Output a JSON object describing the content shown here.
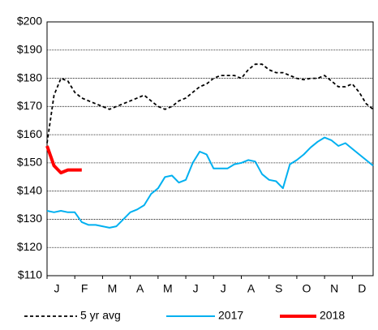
{
  "chart_data": {
    "type": "line",
    "categories": [
      "J",
      null,
      null,
      null,
      "F",
      null,
      null,
      null,
      "M",
      null,
      null,
      null,
      "A",
      null,
      null,
      null,
      "M",
      null,
      null,
      null,
      "J",
      null,
      null,
      null,
      "J",
      null,
      null,
      null,
      "A",
      null,
      null,
      null,
      "S",
      null,
      null,
      null,
      "O",
      null,
      null,
      null,
      "N",
      null,
      null,
      null,
      "D",
      null,
      null,
      null
    ],
    "series": [
      {
        "name": "5 yr avg",
        "color": "#000000",
        "dash": true,
        "values": [
          157,
          174,
          180,
          179,
          175,
          173,
          172,
          171,
          170,
          169,
          170,
          171,
          172,
          173,
          174,
          172,
          170,
          169,
          170,
          172,
          173,
          175,
          177,
          178,
          180,
          181,
          181,
          181,
          180,
          183,
          185,
          185,
          183,
          182,
          182,
          181,
          180,
          179.5,
          180,
          180,
          181,
          179,
          177,
          177,
          178,
          175,
          171,
          169
        ]
      },
      {
        "name": "2017",
        "color": "#00b0f0",
        "dash": false,
        "values": [
          133,
          132.5,
          133,
          132.5,
          132.5,
          129,
          128,
          128,
          127.5,
          127,
          127.5,
          130,
          132.5,
          133.5,
          135,
          139,
          141,
          145,
          145.5,
          143,
          144,
          150,
          154,
          153,
          148,
          148,
          148,
          149.5,
          150,
          151,
          150.5,
          146,
          144,
          143.5,
          141,
          149.5,
          151,
          153,
          155.5,
          157.5,
          159,
          158,
          156,
          157,
          155,
          153,
          151,
          149
        ]
      },
      {
        "name": "2018",
        "color": "#ff0000",
        "dash": false,
        "values": [
          156,
          149,
          146.5,
          147.5,
          147.5,
          147.5,
          null,
          null,
          null,
          null,
          null,
          null,
          null,
          null,
          null,
          null,
          null,
          null,
          null,
          null,
          null,
          null,
          null,
          null,
          null,
          null,
          null,
          null,
          null,
          null,
          null,
          null,
          null,
          null,
          null,
          null,
          null,
          null,
          null,
          null,
          null,
          null,
          null,
          null,
          null,
          null,
          null,
          null
        ]
      }
    ],
    "ylim": [
      110,
      200
    ],
    "yticks": [
      {
        "value": 110,
        "label": "$110"
      },
      {
        "value": 120,
        "label": "$120"
      },
      {
        "value": 130,
        "label": "$130"
      },
      {
        "value": 140,
        "label": "$140"
      },
      {
        "value": 150,
        "label": "$150"
      },
      {
        "value": 160,
        "label": "$160"
      },
      {
        "value": 170,
        "label": "$170"
      },
      {
        "value": 180,
        "label": "$180"
      },
      {
        "value": 190,
        "label": "$190"
      },
      {
        "value": 200,
        "label": "$200"
      }
    ],
    "grid": true,
    "legend": "bottom"
  }
}
